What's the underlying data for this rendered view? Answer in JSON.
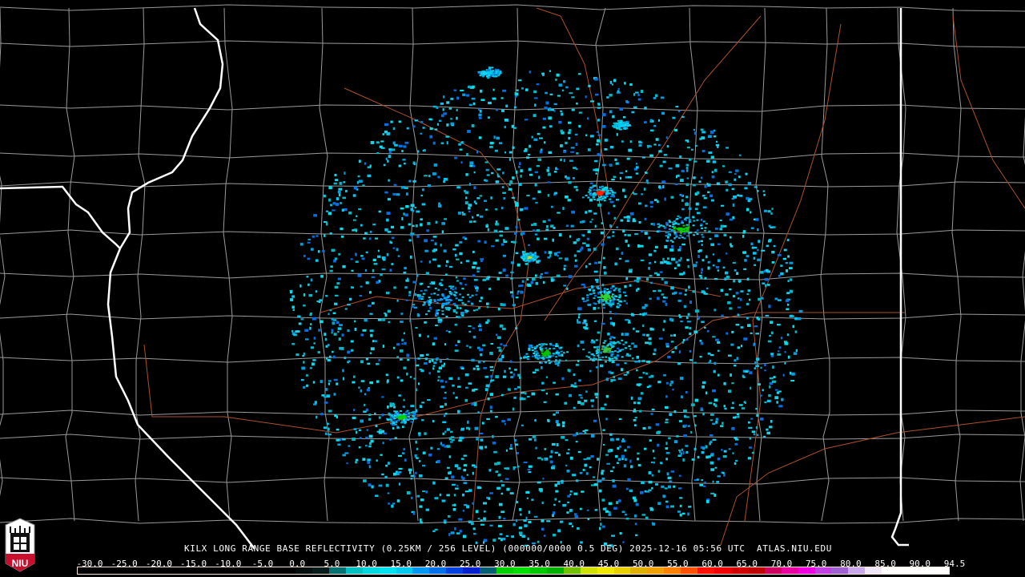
{
  "product": {
    "caption": "KILX LONG RANGE BASE REFLECTIVITY (0.25KM / 256 LEVEL) (000000/0000 0.5 DEG) 2025-12-16 05:56 UTC  ATLAS.NIU.EDU"
  },
  "logo": {
    "text": "NIU",
    "colors": {
      "shield": "#ffffff",
      "band": "#c8102e"
    }
  },
  "colorbar": {
    "unit_labels": [
      "-30.0",
      "-25.0",
      "-20.0",
      "-15.0",
      "-10.0",
      "-5.0",
      "0.0",
      "5.0",
      "10.0",
      "15.0",
      "20.0",
      "25.0",
      "30.0",
      "35.0",
      "40.0",
      "45.0",
      "50.0",
      "55.0",
      "60.0",
      "65.0",
      "70.0",
      "75.0",
      "80.0",
      "85.0",
      "90.0",
      "94.5"
    ],
    "min": -30.0,
    "max": 94.5,
    "colors": [
      "#000000",
      "#000000",
      "#000000",
      "#000000",
      "#000000",
      "#000000",
      "#000000",
      "#000000",
      "#000000",
      "#000000",
      "#000000",
      "#000000",
      "#000000",
      "#020d0d",
      "#061a1a",
      "#007070",
      "#00c0c0",
      "#00d8e0",
      "#00e0f0",
      "#00c8f0",
      "#0098f0",
      "#0070e8",
      "#0040e0",
      "#0020d0",
      "#006070",
      "#00d000",
      "#00e000",
      "#00c800",
      "#00b000",
      "#70c000",
      "#d0e000",
      "#f0e800",
      "#e8d000",
      "#e0b000",
      "#f0a000",
      "#ff8000",
      "#ff5000",
      "#ff1000",
      "#f00000",
      "#d00000",
      "#c00000",
      "#d00060",
      "#e800a0",
      "#f000e0",
      "#c040e0",
      "#a060d0",
      "#c8a8e8",
      "#f0e8f8",
      "#ffffff",
      "#ffffff",
      "#ffffff",
      "#ffffff"
    ]
  },
  "layers": {
    "state_border_color": "#ffffff",
    "county_border_color": "#9a9a9a",
    "highway_color": "#b0502a"
  }
}
